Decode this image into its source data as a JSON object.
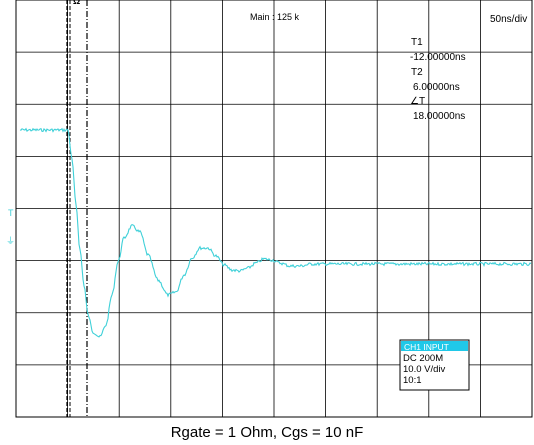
{
  "scope": {
    "sample_rate": "Main : 125 k",
    "timebase": "50ns/div",
    "cursor_marker": "Ω",
    "level_marker": "T",
    "ground_marker": "⏚",
    "cursors": {
      "t1_label": "T1",
      "t1_value": "-12.00000ns",
      "t2_label": "T2",
      "t2_value": "6.00000ns",
      "dt_label": "∠T",
      "dt_value": "18.00000ns"
    },
    "channel": {
      "header": "CH1 INPUT",
      "coupling": "DC 200M",
      "scale": "10.0 V/div",
      "probe": "10:1"
    },
    "colors": {
      "trace": "#3fd0d8",
      "grid": "#000000",
      "channel_header_bg": "#20c8e8"
    }
  },
  "caption": "Rgate = 1 Ohm, Cgs = 10 nF"
}
